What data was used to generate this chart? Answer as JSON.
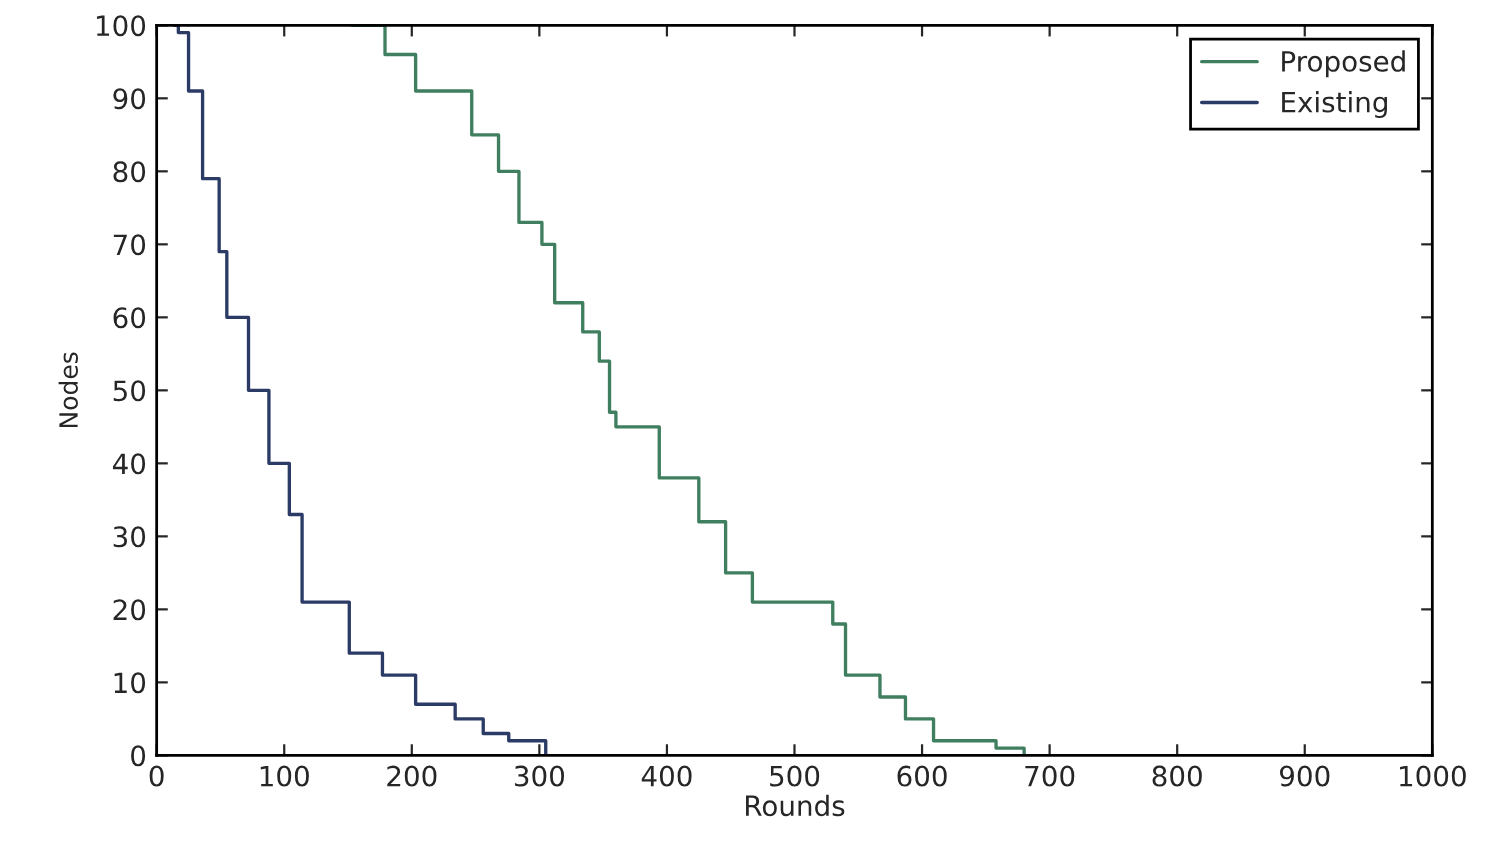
{
  "chart_data": {
    "type": "step",
    "xlabel": "Rounds",
    "ylabel": "Nodes",
    "xlim": [
      0,
      1000
    ],
    "ylim": [
      0,
      100
    ],
    "xticks": [
      0,
      100,
      200,
      300,
      400,
      500,
      600,
      700,
      800,
      900,
      1000
    ],
    "yticks": [
      0,
      10,
      20,
      30,
      40,
      50,
      60,
      70,
      80,
      90,
      100
    ],
    "grid": false,
    "legend": "top right",
    "line_style": "solid",
    "marker": "none",
    "series": [
      {
        "name": "Proposed",
        "color": "#3f7f5f",
        "x": [
          153,
          179,
          203,
          226,
          247,
          268,
          284,
          302,
          312,
          334,
          347,
          355,
          360,
          394,
          425,
          446,
          467,
          512,
          530,
          540,
          567,
          587,
          609,
          640,
          658,
          680
        ],
        "values": [
          100,
          96,
          91,
          91,
          85,
          80,
          73,
          70,
          62,
          58,
          54,
          47,
          45,
          38,
          32,
          25,
          21,
          21,
          18,
          11,
          8,
          5,
          2,
          2,
          1,
          0
        ]
      },
      {
        "name": "Existing",
        "color": "#2b3b66",
        "x": [
          14,
          17,
          25,
          36,
          49,
          55,
          72,
          88,
          104,
          114,
          151,
          177,
          203,
          234,
          256,
          276,
          305
        ],
        "values": [
          100,
          99,
          91,
          79,
          69,
          60,
          50,
          40,
          33,
          21,
          14,
          11,
          7,
          5,
          3,
          2,
          0
        ]
      }
    ]
  }
}
